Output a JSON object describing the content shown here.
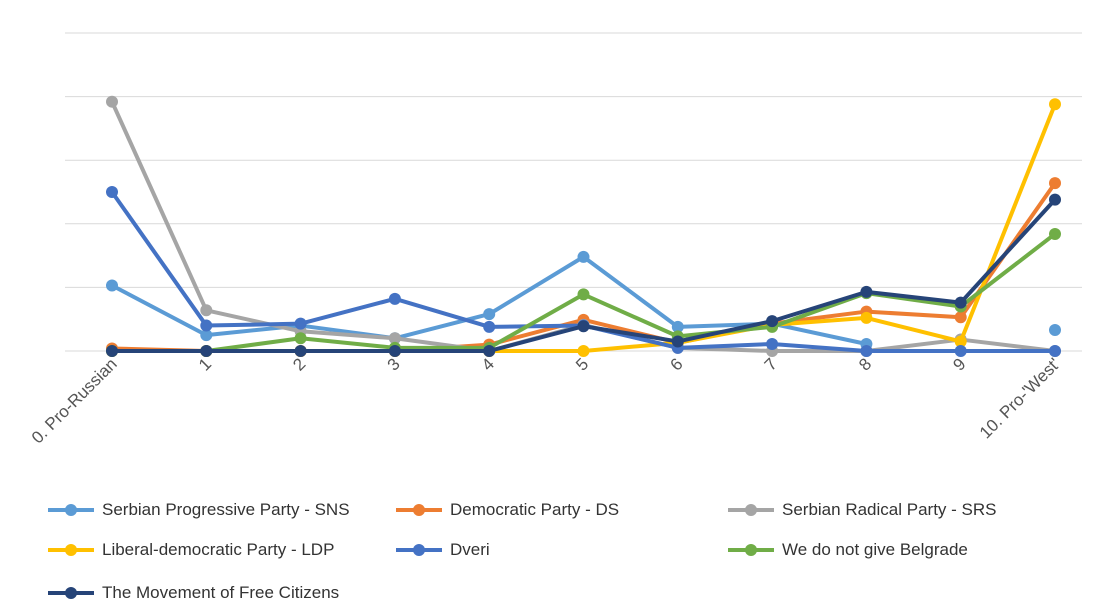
{
  "chart_data": {
    "type": "line",
    "categories": [
      "0. Pro-Russian",
      "1",
      "2",
      "3",
      "4",
      "5",
      "6",
      "7",
      "8",
      "9",
      "10. Pro-'West'"
    ],
    "ylim": [
      0,
      50
    ],
    "ygrid_step": 10,
    "grid": "horizontal",
    "legend_position": "bottom",
    "series": [
      {
        "name": "Serbian Progressive Party - SNS",
        "color": "#5b9bd5",
        "values": [
          10.3,
          2.5,
          4.0,
          2.0,
          5.8,
          14.8,
          3.8,
          4.3,
          1.1,
          null,
          3.3
        ]
      },
      {
        "name": "Democratic Party - DS",
        "color": "#ed7d31",
        "values": [
          0.4,
          0.0,
          0.0,
          0.0,
          1.0,
          4.9,
          1.3,
          4.3,
          6.2,
          5.3,
          26.4
        ]
      },
      {
        "name": "Serbian Radical Party - SRS",
        "color": "#a5a5a5",
        "values": [
          39.2,
          6.4,
          3.1,
          2.0,
          0.0,
          4.1,
          0.5,
          0.0,
          0.0,
          1.8,
          0.0
        ]
      },
      {
        "name": "Liberal-democratic Party - LDP",
        "color": "#ffc000",
        "values": [
          0.0,
          0.0,
          0.0,
          0.0,
          0.0,
          0.0,
          1.3,
          4.1,
          5.2,
          1.5,
          38.8
        ]
      },
      {
        "name": "Dveri",
        "color": "#4472c4",
        "values": [
          25.0,
          4.0,
          4.3,
          8.2,
          3.8,
          4.0,
          0.5,
          1.1,
          0.0,
          0.0,
          0.0
        ]
      },
      {
        "name": "We do not give Belgrade",
        "color": "#70ad47",
        "values": [
          0.0,
          0.0,
          2.0,
          0.5,
          0.5,
          8.9,
          2.3,
          3.8,
          9.1,
          7.0,
          18.4
        ]
      },
      {
        "name": "The Movement of Free Citizens",
        "color": "#264478",
        "values": [
          0.0,
          0.0,
          0.0,
          0.0,
          0.0,
          3.9,
          1.5,
          4.7,
          9.3,
          7.6,
          23.8
        ]
      }
    ]
  }
}
